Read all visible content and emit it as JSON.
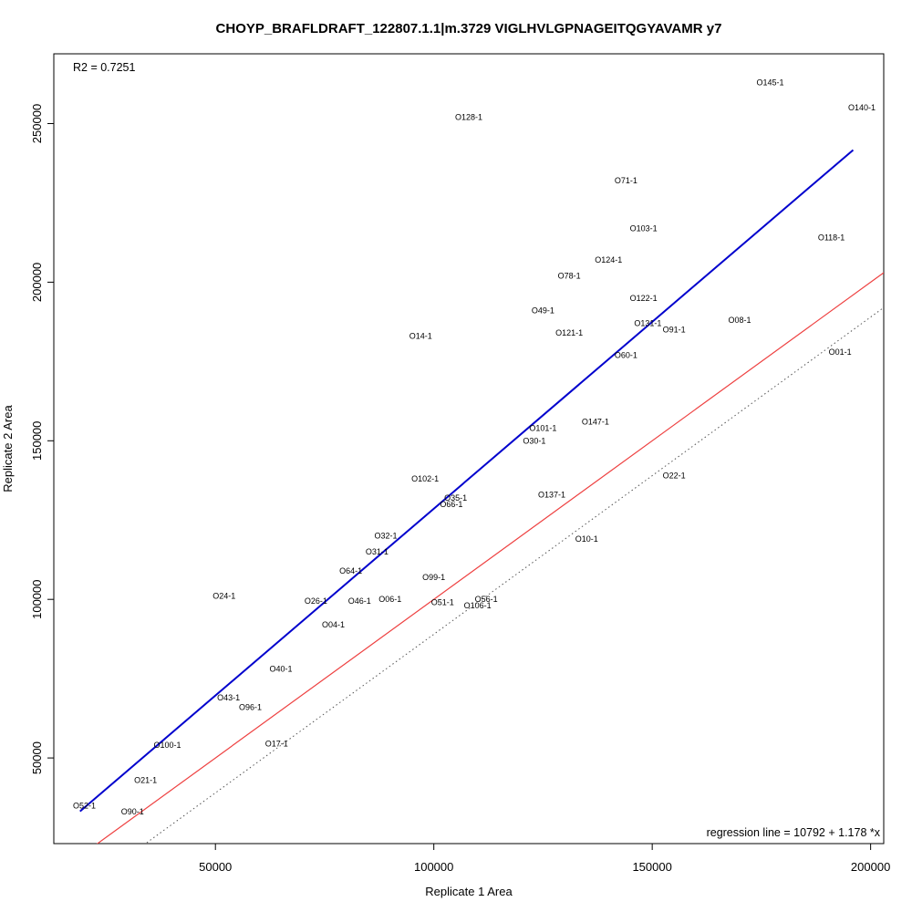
{
  "chart_data": {
    "type": "scatter",
    "title": "CHOYP_BRAFLDRAFT_122807.1.1|m.3729 VIGLHVLGPNAGEITQGYAVAMR y7",
    "xlabel": "Replicate 1 Area",
    "ylabel": "Replicate 2 Area",
    "xlim": [
      13000,
      203000
    ],
    "ylim": [
      23000,
      272000
    ],
    "x_ticks": [
      50000,
      100000,
      150000,
      200000
    ],
    "y_ticks": [
      50000,
      100000,
      150000,
      200000,
      250000
    ],
    "r2_text": "R2 = 0.7251",
    "regression_text": "regression line = 10792 + 1.178 *x",
    "regression": {
      "intercept": 10792,
      "slope": 1.178,
      "x_range": [
        19000,
        196000
      ],
      "color": "#0000cd"
    },
    "identity_line": {
      "slope": 1,
      "intercept": 0,
      "color": "#ee4040"
    },
    "lower_bound_line": {
      "slope": 1,
      "intercept": -11000,
      "color": "#555555",
      "style": "dotted"
    },
    "points": [
      {
        "label": "O145-1",
        "x": 177000,
        "y": 263000
      },
      {
        "label": "O140-1",
        "x": 198000,
        "y": 255000
      },
      {
        "label": "O128-1",
        "x": 108000,
        "y": 252000
      },
      {
        "label": "O71-1",
        "x": 144000,
        "y": 232000
      },
      {
        "label": "O103-1",
        "x": 148000,
        "y": 217000
      },
      {
        "label": "O118-1",
        "x": 191000,
        "y": 214000
      },
      {
        "label": "O124-1",
        "x": 140000,
        "y": 207000
      },
      {
        "label": "O78-1",
        "x": 131000,
        "y": 202000
      },
      {
        "label": "O122-1",
        "x": 148000,
        "y": 195000
      },
      {
        "label": "O49-1",
        "x": 125000,
        "y": 191000
      },
      {
        "label": "O131-1",
        "x": 149000,
        "y": 187000
      },
      {
        "label": "O08-1",
        "x": 170000,
        "y": 188000
      },
      {
        "label": "O91-1",
        "x": 155000,
        "y": 185000
      },
      {
        "label": "O121-1",
        "x": 131000,
        "y": 184000
      },
      {
        "label": "O14-1",
        "x": 97000,
        "y": 183000
      },
      {
        "label": "O01-1",
        "x": 193000,
        "y": 178000
      },
      {
        "label": "O60-1",
        "x": 144000,
        "y": 177000
      },
      {
        "label": "O147-1",
        "x": 137000,
        "y": 156000
      },
      {
        "label": "O101-1",
        "x": 125000,
        "y": 154000
      },
      {
        "label": "O30-1",
        "x": 123000,
        "y": 150000
      },
      {
        "label": "O22-1",
        "x": 155000,
        "y": 139000
      },
      {
        "label": "O102-1",
        "x": 98000,
        "y": 138000
      },
      {
        "label": "O137-1",
        "x": 127000,
        "y": 133000
      },
      {
        "label": "O35-1",
        "x": 105000,
        "y": 132000
      },
      {
        "label": "O66-1",
        "x": 104000,
        "y": 130000
      },
      {
        "label": "O32-1",
        "x": 89000,
        "y": 120000
      },
      {
        "label": "O10-1",
        "x": 135000,
        "y": 119000
      },
      {
        "label": "O31-1",
        "x": 87000,
        "y": 115000
      },
      {
        "label": "O64-1",
        "x": 81000,
        "y": 109000
      },
      {
        "label": "O99-1",
        "x": 100000,
        "y": 107000
      },
      {
        "label": "O24-1",
        "x": 52000,
        "y": 101000
      },
      {
        "label": "O06-1",
        "x": 90000,
        "y": 100000
      },
      {
        "label": "O56-1",
        "x": 112000,
        "y": 100000
      },
      {
        "label": "O26-1",
        "x": 73000,
        "y": 99500
      },
      {
        "label": "O46-1",
        "x": 83000,
        "y": 99500
      },
      {
        "label": "O51-1",
        "x": 102000,
        "y": 99000
      },
      {
        "label": "O106-1",
        "x": 110000,
        "y": 98000
      },
      {
        "label": "O04-1",
        "x": 77000,
        "y": 92000
      },
      {
        "label": "O40-1",
        "x": 65000,
        "y": 78000
      },
      {
        "label": "O43-1",
        "x": 53000,
        "y": 69000
      },
      {
        "label": "O96-1",
        "x": 58000,
        "y": 66000
      },
      {
        "label": "O100-1",
        "x": 39000,
        "y": 54000
      },
      {
        "label": "O17-1",
        "x": 64000,
        "y": 54500
      },
      {
        "label": "O21-1",
        "x": 34000,
        "y": 43000
      },
      {
        "label": "O52-1",
        "x": 20000,
        "y": 35000
      },
      {
        "label": "O90-1",
        "x": 31000,
        "y": 33000
      }
    ]
  }
}
